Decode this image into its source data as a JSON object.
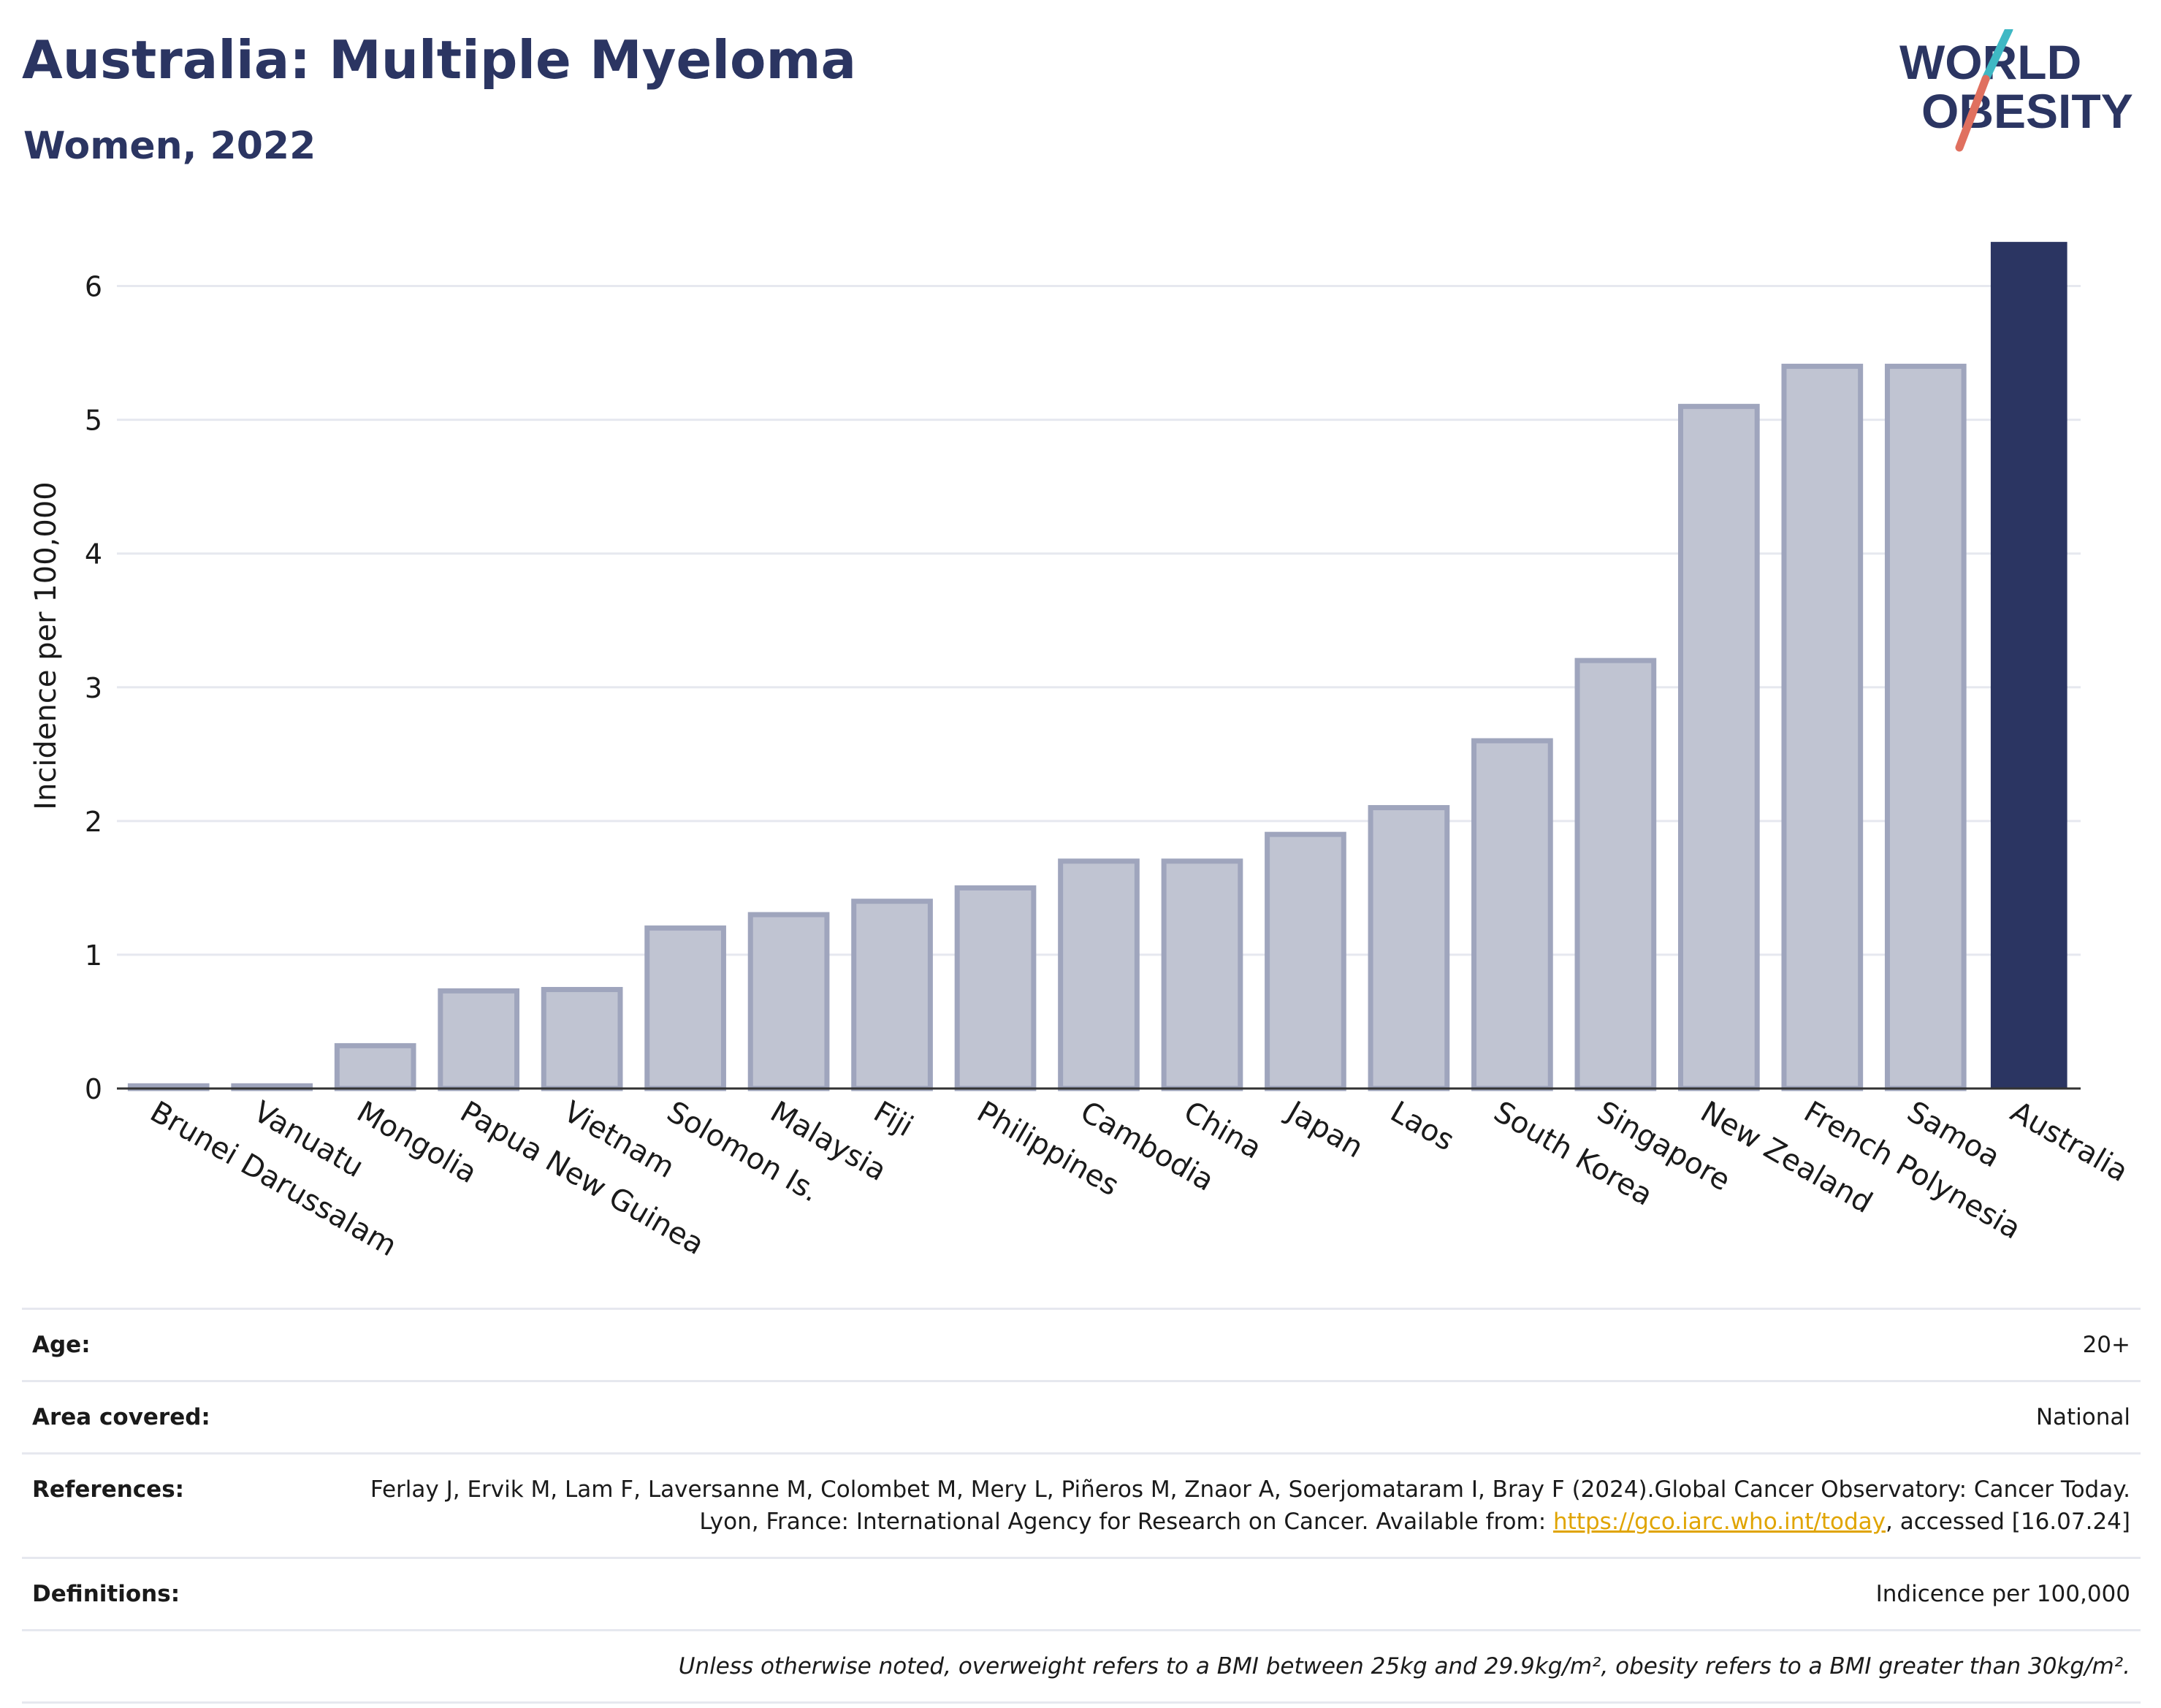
{
  "header": {
    "title": "Australia: Multiple Myeloma",
    "subtitle": "Women, 2022"
  },
  "logo": {
    "line1": "WORLD",
    "line2": "OBESITY",
    "text_color": "#2b3562",
    "slash_top_color": "#3fb8c4",
    "slash_bottom_color": "#e0705f"
  },
  "chart_data": {
    "type": "bar",
    "categories": [
      "Brunei Darussalam",
      "Vanuatu",
      "Mongolia",
      "Papua New Guinea",
      "Vietnam",
      "Solomon Is.",
      "Malaysia",
      "Fiji",
      "Philippines",
      "Cambodia",
      "China",
      "Japan",
      "Laos",
      "South Korea",
      "Singapore",
      "New Zealand",
      "French Polynesia",
      "Samoa",
      "Australia"
    ],
    "values": [
      0.02,
      0.02,
      0.32,
      0.73,
      0.74,
      1.2,
      1.3,
      1.4,
      1.5,
      1.7,
      1.7,
      1.9,
      2.1,
      2.6,
      3.2,
      5.1,
      5.4,
      5.4,
      6.33
    ],
    "highlight": "Australia",
    "title": "",
    "xlabel": "",
    "ylabel": "Incidence per 100,000",
    "ylim": [
      0,
      6.5
    ],
    "yticks": [
      0,
      1,
      2,
      3,
      4,
      5,
      6
    ],
    "grid": true,
    "colors": {
      "bar": "#c0c4d2",
      "bar_edge": "#9fa5bd",
      "highlight": "#2b3562",
      "grid": "#e6e8ef",
      "axis": "#333333"
    }
  },
  "info": {
    "age_label": "Age:",
    "age_value": "20+",
    "area_label": "Area covered:",
    "area_value": "National",
    "references_label": "References:",
    "references_text_1": "Ferlay J, Ervik M, Lam F, Laversanne M, Colombet M, Mery L, Piñeros M, Znaor A, Soerjomataram I, Bray F (2024).Global Cancer Observatory: Cancer Today. Lyon, France: International Agency for Research on Cancer. Available from: ",
    "references_link": "https://gco.iarc.who.int/today",
    "references_text_2": ", accessed [16.07.24]",
    "definitions_label": "Definitions:",
    "definitions_value": "Indicence per 100,000",
    "note": "Unless otherwise noted, overweight refers to a BMI between 25kg and 29.9kg/m², obesity refers to a BMI greater than 30kg/m²."
  }
}
